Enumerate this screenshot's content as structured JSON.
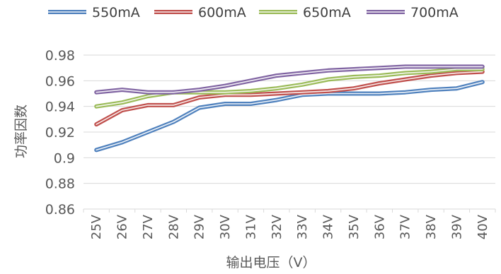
{
  "chart_data": {
    "type": "line",
    "xlabel": "输出电压（V）",
    "ylabel": "功率因数",
    "categories": [
      "25V",
      "26V",
      "27V",
      "28V",
      "29V",
      "30V",
      "31V",
      "32V",
      "33V",
      "34V",
      "35V",
      "36V",
      "37V",
      "38V",
      "39V",
      "40V"
    ],
    "ylim": [
      0.86,
      0.98
    ],
    "yticks": [
      0.86,
      0.88,
      0.9,
      0.92,
      0.94,
      0.96,
      0.98
    ],
    "ytick_labels": [
      "0.86",
      "0.88",
      "0.9",
      "0.92",
      "0.94",
      "0.96",
      "0.98"
    ],
    "grid": true,
    "legend_position": "top",
    "series": [
      {
        "name": "550mA",
        "color": "#4F81BD",
        "values": [
          0.906,
          0.912,
          0.92,
          0.928,
          0.939,
          0.942,
          0.942,
          0.945,
          0.949,
          0.95,
          0.95,
          0.95,
          0.951,
          0.953,
          0.954,
          0.959
        ]
      },
      {
        "name": "600mA",
        "color": "#C0504D",
        "values": [
          0.926,
          0.937,
          0.941,
          0.941,
          0.947,
          0.949,
          0.949,
          0.95,
          0.951,
          0.952,
          0.954,
          0.958,
          0.961,
          0.964,
          0.966,
          0.967
        ]
      },
      {
        "name": "650mA",
        "color": "#9BBB59",
        "values": [
          0.94,
          0.943,
          0.948,
          0.951,
          0.951,
          0.951,
          0.952,
          0.954,
          0.957,
          0.961,
          0.963,
          0.964,
          0.966,
          0.967,
          0.969,
          0.969
        ]
      },
      {
        "name": "700mA",
        "color": "#8064A2",
        "values": [
          0.951,
          0.953,
          0.951,
          0.951,
          0.953,
          0.956,
          0.96,
          0.964,
          0.966,
          0.968,
          0.969,
          0.97,
          0.971,
          0.971,
          0.971,
          0.971
        ]
      }
    ]
  }
}
